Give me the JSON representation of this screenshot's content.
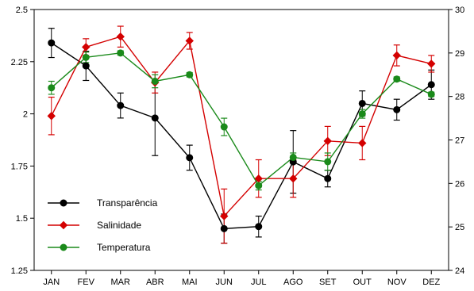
{
  "chart_data": {
    "type": "line",
    "title": "",
    "xlabel": "",
    "ylabel": "",
    "y2label": "",
    "categories": [
      "JAN",
      "FEV",
      "MAR",
      "ABR",
      "MAI",
      "JUN",
      "JUL",
      "AGO",
      "SET",
      "OUT",
      "NOV",
      "DEZ"
    ],
    "ylim": [
      1.25,
      2.5
    ],
    "y2lim": [
      24,
      30
    ],
    "yticks": [
      "1.25",
      "1.5",
      "1.75",
      "2",
      "2.25",
      "2.5"
    ],
    "y2ticks": [
      "24",
      "25",
      "26",
      "27",
      "28",
      "29",
      "30"
    ],
    "grid": false,
    "legend_position": "bottom-left",
    "series": [
      {
        "name": "Transparência",
        "axis": "left",
        "color": "#000000",
        "marker": "circle",
        "values": [
          2.34,
          2.23,
          2.04,
          1.98,
          1.79,
          1.45,
          1.46,
          1.77,
          1.69,
          2.05,
          2.02,
          2.14
        ],
        "error": [
          0.07,
          0.07,
          0.06,
          0.18,
          0.06,
          0.07,
          0.05,
          0.15,
          0.04,
          0.06,
          0.05,
          0.07
        ]
      },
      {
        "name": "Salinidade",
        "axis": "left",
        "color": "#d40000",
        "marker": "diamond",
        "values": [
          1.99,
          2.32,
          2.37,
          2.15,
          2.35,
          1.51,
          1.69,
          1.69,
          1.87,
          1.86,
          2.28,
          2.24
        ],
        "error": [
          0.09,
          0.04,
          0.05,
          0.05,
          0.04,
          0.13,
          0.09,
          0.09,
          0.07,
          0.08,
          0.05,
          0.04
        ]
      },
      {
        "name": "Temperatura",
        "axis": "right",
        "color": "#1a8a1a",
        "marker": "circle",
        "values": [
          28.2,
          28.9,
          29.0,
          28.35,
          28.5,
          27.3,
          25.95,
          26.6,
          26.5,
          27.6,
          28.4,
          28.05
        ],
        "error": [
          0.15,
          0.12,
          0.05,
          0.15,
          0.05,
          0.2,
          0.1,
          0.1,
          0.2,
          0.1,
          0.05,
          0.05
        ]
      }
    ]
  }
}
